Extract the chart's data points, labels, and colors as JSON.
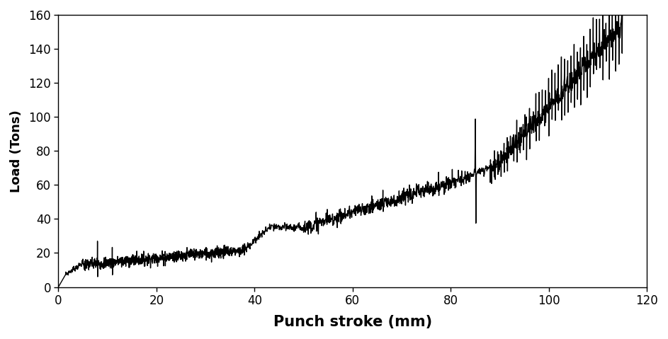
{
  "xlabel": "Punch stroke (mm)",
  "ylabel": "Load (Tons)",
  "xlim": [
    0,
    120
  ],
  "ylim": [
    0,
    160
  ],
  "xticks": [
    0,
    20,
    40,
    60,
    80,
    100,
    120
  ],
  "yticks": [
    0,
    20,
    40,
    60,
    80,
    100,
    120,
    140,
    160
  ],
  "line_color": "#000000",
  "line_width": 1.0,
  "bg_color": "#ffffff",
  "xlabel_fontsize": 15,
  "ylabel_fontsize": 13,
  "tick_fontsize": 12,
  "seed": 7
}
